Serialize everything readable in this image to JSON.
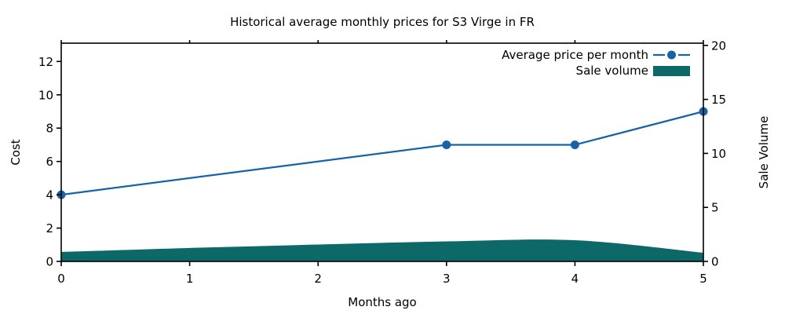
{
  "chart_data": {
    "type": "line+area",
    "title": "Historical average monthly prices for S3 Virge in FR",
    "xlabel": "Months ago",
    "ylabel_left": "Cost",
    "ylabel_right": "Sale Volume",
    "xlim": [
      0,
      5
    ],
    "ylim_left": [
      0,
      13.1
    ],
    "ylim_right": [
      0,
      20.2
    ],
    "xticks": [
      0,
      1,
      2,
      3,
      4,
      5
    ],
    "yticks_left": [
      0,
      2,
      4,
      6,
      8,
      10,
      12
    ],
    "yticks_right": [
      0,
      5,
      10,
      15,
      20
    ],
    "grid": false,
    "legend_position": "upper right",
    "colors": {
      "price_line": "#1563a8",
      "volume_area": "#0d6968",
      "axis": "#000000"
    },
    "series": [
      {
        "name": "Average price per month",
        "type": "line",
        "axis": "left",
        "marker": "circle",
        "color": "#1563a8",
        "x": [
          0,
          3,
          4,
          5
        ],
        "y": [
          4,
          7,
          7,
          9
        ]
      },
      {
        "name": "Sale volume",
        "type": "area",
        "axis": "right",
        "color": "#0d6968",
        "x": [
          0,
          1,
          2,
          3,
          4,
          5
        ],
        "y": [
          0.87,
          1.24,
          1.56,
          1.85,
          1.96,
          0.8
        ]
      }
    ]
  }
}
